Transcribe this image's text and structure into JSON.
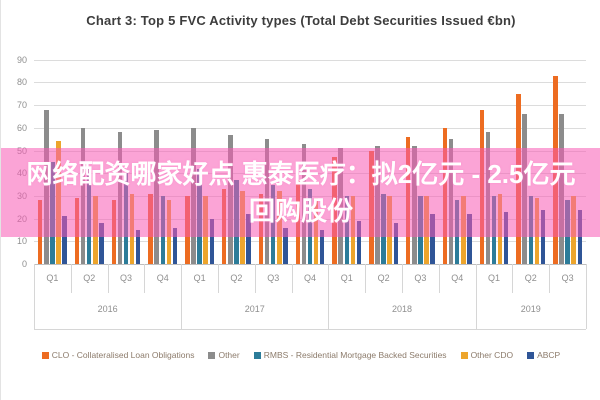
{
  "title": "Chart 3: Top 5 FVC Activity types (Total Debt Securities Issued €bn)",
  "overlay": {
    "line1": "网络配资哪家好点 惠泰医疗：拟2亿元 - 2.5亿元",
    "line2": "回购股份",
    "band_color": "rgba(247,90,180,0.55)",
    "text_color": "#ffffff"
  },
  "chart_data": {
    "type": "bar",
    "title": "Chart 3: Top 5 FVC Activity types (Total Debt Securities Issued €bn)",
    "ylabel": "",
    "xlabel": "",
    "ylim": [
      0,
      90
    ],
    "yticks": [
      0,
      10,
      20,
      30,
      40,
      50,
      60,
      70,
      80,
      90
    ],
    "grid": true,
    "legend_position": "bottom",
    "years": [
      {
        "label": "2016",
        "quarters": [
          "Q1",
          "Q2",
          "Q3",
          "Q4"
        ]
      },
      {
        "label": "2017",
        "quarters": [
          "Q1",
          "Q2",
          "Q3",
          "Q4"
        ]
      },
      {
        "label": "2018",
        "quarters": [
          "Q1",
          "Q2",
          "Q3",
          "Q4"
        ]
      },
      {
        "label": "2019",
        "quarters": [
          "Q1",
          "Q2",
          "Q3"
        ]
      }
    ],
    "series": [
      {
        "name": "CLO - Collateralised Loan Obligations",
        "color": "#ED6C21",
        "values": [
          28,
          29,
          28,
          31,
          30,
          33,
          31,
          37,
          47,
          50,
          56,
          60,
          68,
          75,
          83
        ]
      },
      {
        "name": "Other",
        "color": "#8C8C8C",
        "values": [
          68,
          60,
          58,
          59,
          60,
          57,
          55,
          53,
          51,
          52,
          52,
          55,
          58,
          66,
          66
        ]
      },
      {
        "name": "RMBS - Residential Mortgage Backed Securities",
        "color": "#2C7C99",
        "values": [
          45,
          42,
          40,
          30,
          42,
          37,
          35,
          33,
          30,
          31,
          30,
          28,
          30,
          30,
          28
        ]
      },
      {
        "name": "Other CDO",
        "color": "#EDA52C",
        "values": [
          54,
          30,
          31,
          28,
          30,
          32,
          32,
          29,
          30,
          30,
          30,
          30,
          31,
          29,
          30
        ]
      },
      {
        "name": "ABCP",
        "color": "#2F5597",
        "values": [
          21,
          18,
          15,
          16,
          20,
          22,
          16,
          15,
          19,
          18,
          22,
          22,
          23,
          24,
          24
        ]
      }
    ]
  }
}
